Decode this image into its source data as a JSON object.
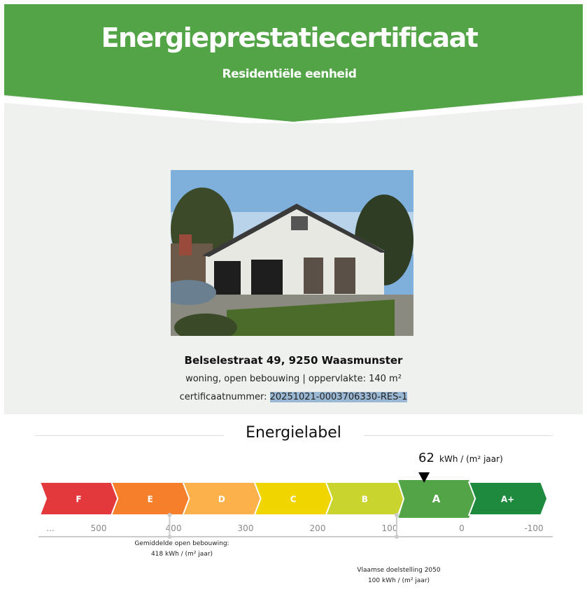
{
  "header": {
    "title": "Energieprestatiecertificaat",
    "subtitle": "Residentiële eenheid"
  },
  "property": {
    "address": "Belselestraat 49, 9250 Waasmunster",
    "type": "woning, open bebouwing | oppervlakte: 140 m²",
    "cert_label": "certificaatnummer: ",
    "cert_number": "20251021-0003706330-RES-1"
  },
  "chart_data": {
    "type": "bar",
    "title": "Energielabel",
    "value": 62,
    "value_unit": "kWh / (m² jaar)",
    "categories": [
      "F",
      "E",
      "D",
      "C",
      "B",
      "A",
      "A+"
    ],
    "colors": [
      "#e3383c",
      "#f57f2a",
      "#fdb14b",
      "#f1d500",
      "#c9d42e",
      "#52a447",
      "#1e8a3e"
    ],
    "active_category": "A",
    "ticks": [
      "...",
      "500",
      "400",
      "300",
      "200",
      "100",
      "0",
      "-100"
    ],
    "tick_values": [
      null,
      500,
      400,
      300,
      200,
      100,
      0,
      -100
    ],
    "annotations": [
      {
        "value": 418,
        "line1": "Gemiddelde open bebouwing:",
        "line2": "418 kWh / (m² jaar)"
      },
      {
        "value": 100,
        "line1": "Vlaamse doelstelling 2050",
        "line2": "100 kWh / (m² jaar)"
      }
    ]
  },
  "colors": {
    "brand_green": "#52a447",
    "background": "#eff1ef"
  }
}
